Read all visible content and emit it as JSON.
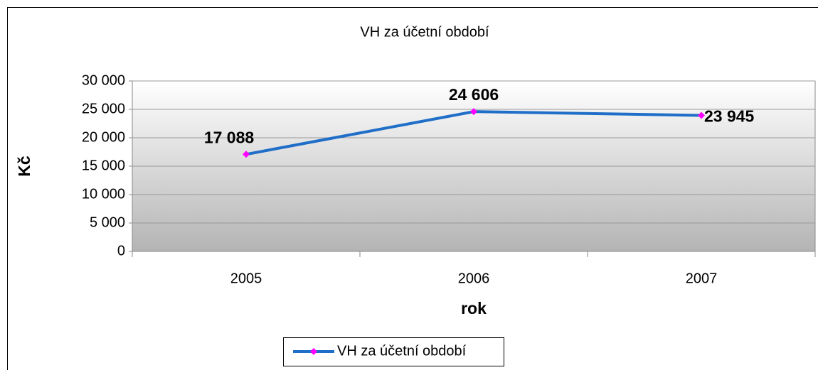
{
  "chart_data": {
    "type": "line",
    "title": "VH za účetní období",
    "x_label": "rok",
    "y_label": "Kč",
    "categories": [
      "2005",
      "2006",
      "2007"
    ],
    "series": [
      {
        "name": "VH za účetní období",
        "color": "#1f6ec8",
        "marker_color": "#ff00ff",
        "values": [
          17088,
          24606,
          23945
        ],
        "value_labels": [
          "17 088",
          "24 606",
          "23 945"
        ]
      }
    ],
    "ylim": [
      0,
      30000
    ],
    "yticks": [
      {
        "value": 0,
        "label": "0"
      },
      {
        "value": 5000,
        "label": "5 000"
      },
      {
        "value": 10000,
        "label": "10 000"
      },
      {
        "value": 15000,
        "label": "15 000"
      },
      {
        "value": 20000,
        "label": "20 000"
      },
      {
        "value": 25000,
        "label": "25 000"
      },
      {
        "value": 30000,
        "label": "30 000"
      }
    ],
    "grid": true,
    "legend": "bottom"
  }
}
